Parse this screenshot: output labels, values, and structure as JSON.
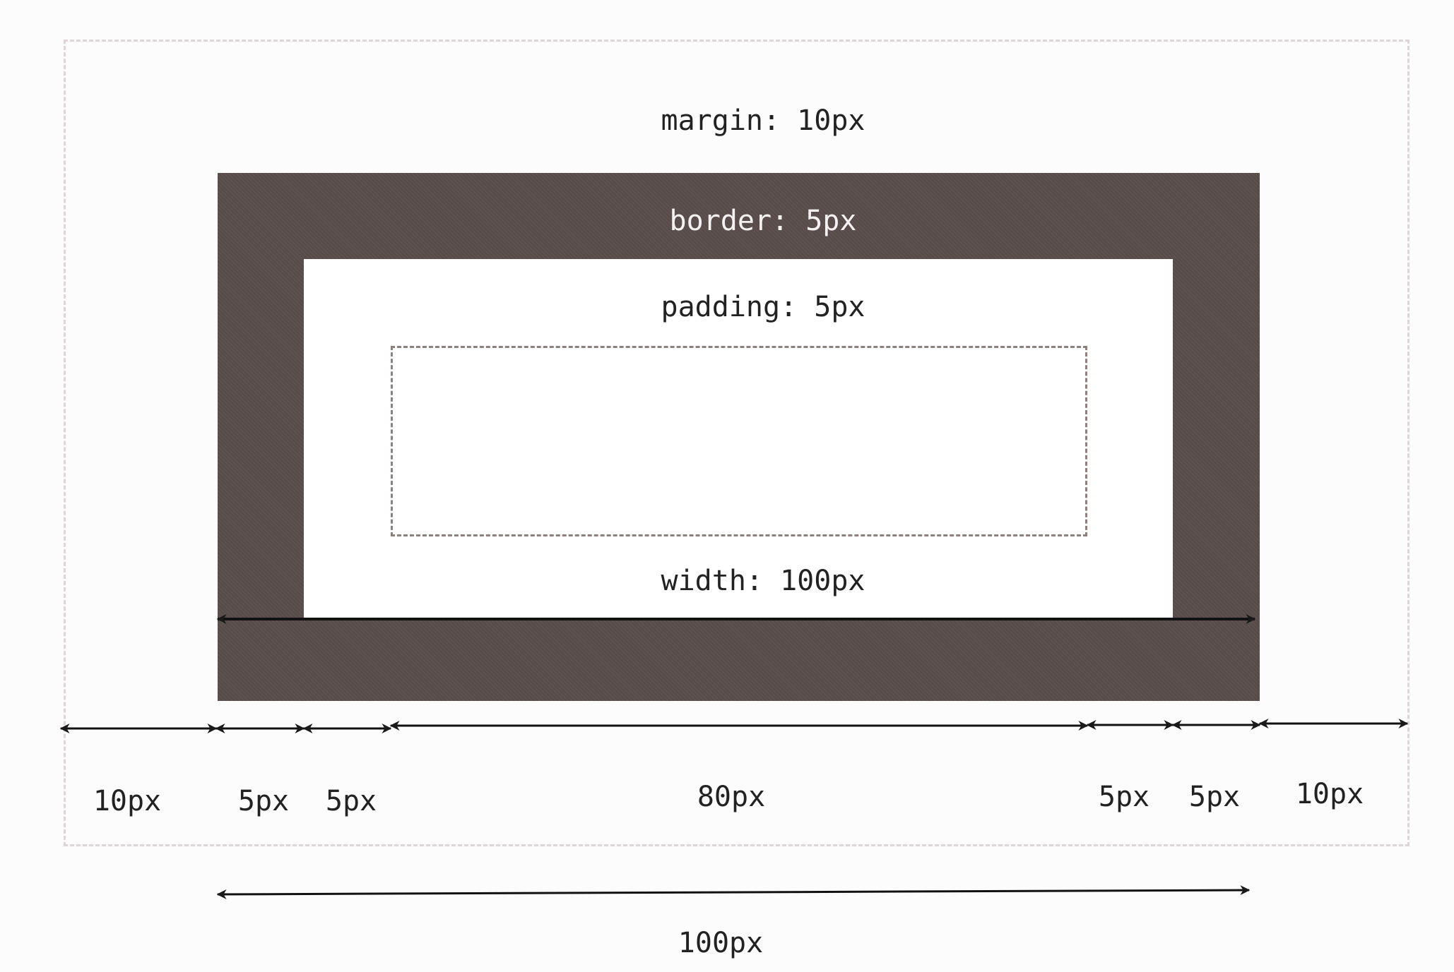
{
  "layers": {
    "margin": "margin: 10px",
    "border": "border: 5px",
    "padding": "padding: 5px",
    "width": "width: 100px"
  },
  "dimension_labels": [
    "10px",
    "5px",
    "5px",
    "80px",
    "5px",
    "5px",
    "10px"
  ],
  "total_width_label": "100px"
}
